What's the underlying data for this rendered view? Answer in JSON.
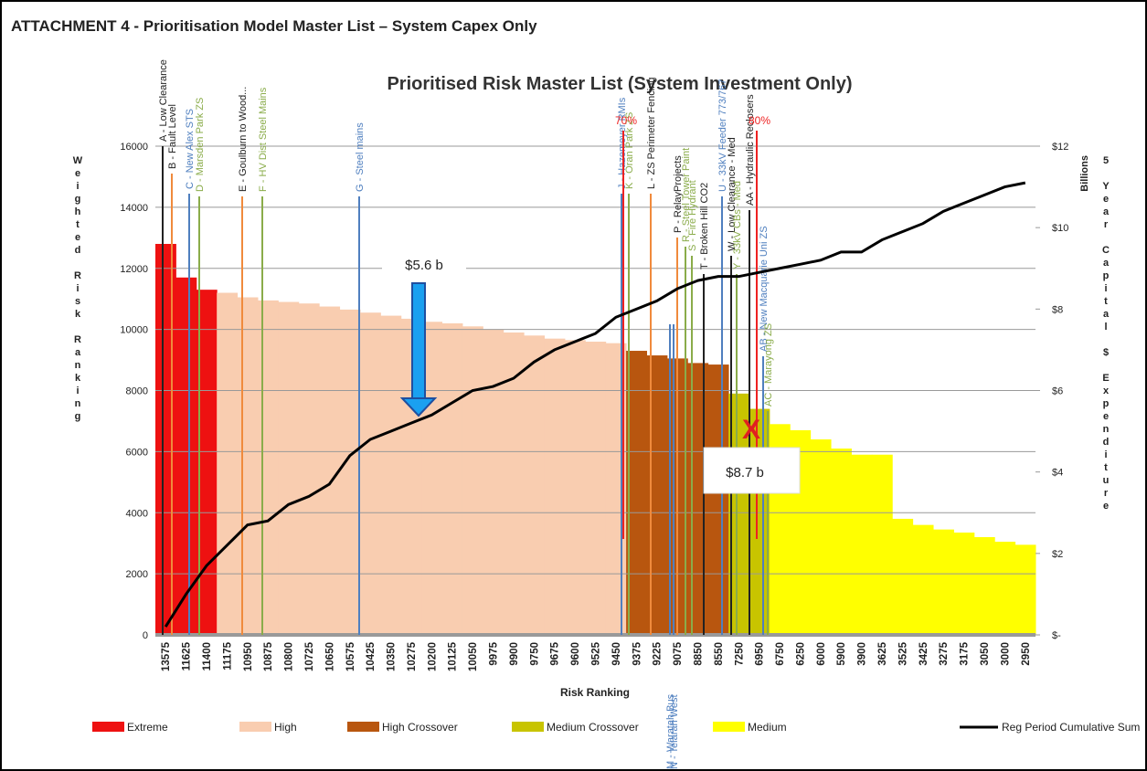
{
  "header": "ATTACHMENT 4 - Prioritisation Model Master List – System Capex Only",
  "chart_data": {
    "type": "bar",
    "title": "Prioritised Risk Master List (System Investment Only)",
    "x_label": "Risk Ranking",
    "y_label": "Weighted Risk Ranking",
    "y2_label": "5 Year Capital $ Expenditure",
    "y2_unit": "Billions",
    "categories": [
      "13575",
      "11625",
      "11400",
      "11175",
      "10950",
      "10875",
      "10800",
      "10725",
      "10650",
      "10575",
      "10425",
      "10350",
      "10275",
      "10200",
      "10125",
      "10050",
      "9975",
      "9900",
      "9750",
      "9675",
      "9600",
      "9525",
      "9450",
      "9375",
      "9225",
      "9075",
      "8850",
      "8550",
      "7250",
      "6950",
      "6750",
      "6250",
      "6000",
      "5900",
      "3900",
      "3625",
      "3525",
      "3425",
      "3275",
      "3175",
      "3050",
      "3000",
      "2950"
    ],
    "series": [
      {
        "name": "Extreme",
        "color": "#ee1111",
        "values": [
          12800,
          11700,
          11300,
          null,
          null,
          null,
          null,
          null,
          null,
          null,
          null,
          null,
          null,
          null,
          null,
          null,
          null,
          null,
          null,
          null,
          null,
          null,
          null,
          null,
          null,
          null,
          null,
          null,
          null,
          null,
          null,
          null,
          null,
          null,
          null,
          null,
          null,
          null,
          null,
          null,
          null,
          null,
          null
        ]
      },
      {
        "name": "High",
        "color": "#f9cdb0",
        "values": [
          null,
          null,
          null,
          11200,
          11050,
          10950,
          10900,
          10850,
          10750,
          10650,
          10550,
          10450,
          10350,
          10250,
          10200,
          10100,
          10000,
          9900,
          9800,
          9700,
          9650,
          9600,
          9550,
          null,
          null,
          null,
          null,
          null,
          null,
          null,
          null,
          null,
          null,
          null,
          null,
          null,
          null,
          null,
          null,
          null,
          null,
          null,
          null
        ]
      },
      {
        "name": "High Crossover",
        "color": "#b8560f",
        "values": [
          null,
          null,
          null,
          null,
          null,
          null,
          null,
          null,
          null,
          null,
          null,
          null,
          null,
          null,
          null,
          null,
          null,
          null,
          null,
          null,
          null,
          null,
          null,
          9300,
          9150,
          9050,
          8900,
          8850,
          null,
          null,
          null,
          null,
          null,
          null,
          null,
          null,
          null,
          null,
          null,
          null,
          null,
          null,
          null
        ]
      },
      {
        "name": "Medium Crossover",
        "color": "#c8c400",
        "values": [
          null,
          null,
          null,
          null,
          null,
          null,
          null,
          null,
          null,
          null,
          null,
          null,
          null,
          null,
          null,
          null,
          null,
          null,
          null,
          null,
          null,
          null,
          null,
          null,
          null,
          null,
          null,
          null,
          7900,
          7400,
          null,
          null,
          null,
          null,
          null,
          null,
          null,
          null,
          null,
          null,
          null,
          null,
          null
        ]
      },
      {
        "name": "Medium",
        "color": "#ffff00",
        "values": [
          null,
          null,
          null,
          null,
          null,
          null,
          null,
          null,
          null,
          null,
          null,
          null,
          null,
          null,
          null,
          null,
          null,
          null,
          null,
          null,
          null,
          null,
          null,
          null,
          null,
          null,
          null,
          null,
          null,
          null,
          6900,
          6700,
          6400,
          6100,
          5900,
          5900,
          3800,
          3600,
          3450,
          3350,
          3200,
          3050,
          2950
        ]
      },
      {
        "name": "Reg Period Cumulative Sum",
        "color": "#000000",
        "axis": "y2",
        "line": true,
        "values": [
          0.2,
          1.0,
          1.7,
          2.2,
          2.7,
          2.8,
          3.2,
          3.4,
          3.7,
          4.4,
          4.8,
          5.0,
          5.2,
          5.4,
          5.7,
          6.0,
          6.1,
          6.3,
          6.7,
          7.0,
          7.2,
          7.4,
          7.8,
          8.0,
          8.2,
          8.5,
          8.7,
          8.8,
          8.8,
          8.9,
          9.0,
          9.1,
          9.2,
          9.4,
          9.4,
          9.7,
          9.9,
          10.1,
          10.4,
          10.6,
          10.8,
          11.0,
          11.1
        ]
      }
    ],
    "ylim": [
      0,
      16000
    ],
    "yticks": [
      0,
      2000,
      4000,
      6000,
      8000,
      10000,
      12000,
      14000,
      16000
    ],
    "y2lim": [
      0,
      12
    ],
    "y2ticks": [
      {
        "value": 0,
        "label": "$-"
      },
      {
        "value": 2,
        "label": "$2"
      },
      {
        "value": 4,
        "label": "$4"
      },
      {
        "value": 6,
        "label": "$6"
      },
      {
        "value": 8,
        "label": "$8"
      },
      {
        "value": 10,
        "label": "$10"
      },
      {
        "value": 12,
        "label": "$12"
      }
    ],
    "grid": true,
    "thresholds": [
      {
        "label": "70%",
        "color": "#ee2222"
      },
      {
        "label": "80%",
        "color": "#ee2222"
      }
    ],
    "markers": [
      {
        "label": "A - Low Clearance",
        "color": "#222222"
      },
      {
        "label": "B - Fault Level",
        "color": "#222222"
      },
      {
        "label": "C - New Alex STS",
        "color": "#4f7fbf"
      },
      {
        "label": "D - Marsden Park ZS",
        "color": "#8aac4a"
      },
      {
        "label": "E - Goulburn to Wood...",
        "color": "#222222"
      },
      {
        "label": "F - HV Dist Steel Mains",
        "color": "#8aac4a"
      },
      {
        "label": "G - Steel mains",
        "color": "#4f7fbf"
      },
      {
        "label": "J - Hazemeyer RMIs",
        "color": "#4f7fbf"
      },
      {
        "label": "K - Oran Park ZS",
        "color": "#8aac4a"
      },
      {
        "label": "L - ZS Perimeter Fencing",
        "color": "#222222"
      },
      {
        "label": "M - Waratah Bus",
        "color": "#4f7fbf"
      },
      {
        "label": "N - Telarah West",
        "color": "#4f7fbf"
      },
      {
        "label": "P - RelayProjects",
        "color": "#222222"
      },
      {
        "label": "R - Steel Tower Paint",
        "color": "#8aac4a"
      },
      {
        "label": "S - Fire Hydrant",
        "color": "#8aac4a"
      },
      {
        "label": "T - Broken Hill CO2",
        "color": "#222222"
      },
      {
        "label": "U - 33kV Feeder 773/767",
        "color": "#4f7fbf"
      },
      {
        "label": "W - Low Clearance - Med",
        "color": "#222222"
      },
      {
        "label": "Y - 33kV CBs - Med",
        "color": "#8aac4a"
      },
      {
        "label": "AA - Hydraulic Reclosers",
        "color": "#222222"
      },
      {
        "label": "AB - New Macquarie Uni ZS",
        "color": "#4f7fbf"
      },
      {
        "label": "AC - Marayong ZS",
        "color": "#8aac4a"
      }
    ],
    "annotations": [
      "$5.6 b",
      "$8.7 b",
      "X"
    ]
  }
}
